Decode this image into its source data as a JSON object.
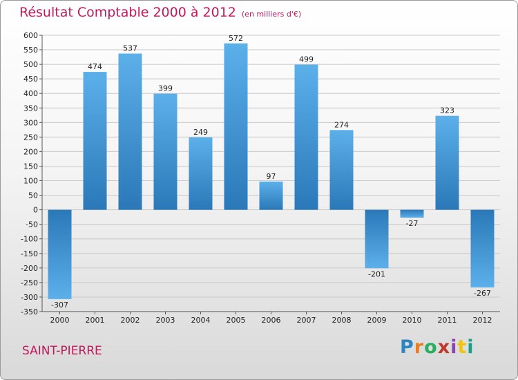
{
  "chart_data": {
    "type": "bar",
    "title": "Résultat Comptable 2000 à 2012",
    "subtitle": "(en milliers d'€)",
    "xlabel": "",
    "ylabel": "",
    "categories": [
      "2000",
      "2001",
      "2002",
      "2003",
      "2004",
      "2005",
      "2006",
      "2007",
      "2008",
      "2009",
      "2010",
      "2011",
      "2012"
    ],
    "values": [
      -307,
      474,
      537,
      399,
      249,
      572,
      97,
      499,
      274,
      -201,
      -27,
      323,
      -267
    ],
    "ylim": [
      -350,
      600
    ],
    "yticks": [
      600,
      550,
      500,
      450,
      400,
      350,
      300,
      250,
      200,
      150,
      100,
      50,
      0,
      -50,
      -100,
      -150,
      -200,
      -250,
      -300,
      -350
    ],
    "grid": true,
    "legend": "none"
  },
  "footer": {
    "location": "SAINT-PIERRE",
    "brand": "Proxiti"
  },
  "colors": {
    "bar_dark": "#2a78b8",
    "bar_light": "#5cb0ea",
    "title": "#c2185b",
    "grid": "#c8c8c8"
  }
}
